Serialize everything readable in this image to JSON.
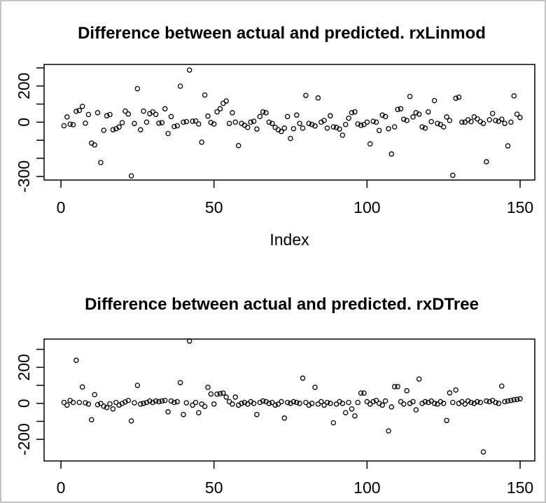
{
  "page": {
    "background": "#ffffff",
    "border_color": "#c3c3c3",
    "axis_color": "#000000",
    "point_color": "#000000"
  },
  "chart_data": [
    {
      "type": "scatter",
      "title": "Difference between actual and predicted. rxLinmod",
      "xlabel": "Index",
      "ylabel": "",
      "marker": "open-circle",
      "grid": false,
      "xlim": [
        -5.5,
        154.8
      ],
      "ylim": [
        -320,
        319
      ],
      "x_ticks": [
        {
          "v": 0,
          "label": "0"
        },
        {
          "v": 50,
          "label": "50"
        },
        {
          "v": 100,
          "label": "100"
        },
        {
          "v": 150,
          "label": "150"
        }
      ],
      "y_ticks": [
        {
          "v": 300,
          "label": ""
        },
        {
          "v": 200,
          "label": "200"
        },
        {
          "v": 100,
          "label": ""
        },
        {
          "v": 0,
          "label": "0"
        },
        {
          "v": -100,
          "label": ""
        },
        {
          "v": -200,
          "label": ""
        },
        {
          "v": -300,
          "label": "-300"
        }
      ],
      "x_index": {
        "from": 1,
        "to": 150
      },
      "values": [
        -20,
        29,
        -11,
        -14,
        60,
        65,
        87,
        -6,
        42,
        -116,
        -126,
        52,
        -223,
        -45,
        35,
        42,
        -42,
        -36,
        -27,
        -3,
        61,
        45,
        -297,
        -7,
        185,
        -42,
        61,
        0,
        47,
        57,
        43,
        -6,
        -3,
        74,
        -63,
        31,
        -24,
        -20,
        199,
        0,
        3,
        288,
        5,
        7,
        -10,
        -111,
        150,
        33,
        -2,
        -10,
        57,
        74,
        104,
        117,
        -7,
        52,
        0,
        -130,
        -7,
        -17,
        -29,
        0,
        5,
        -38,
        31,
        57,
        52,
        0,
        -7,
        -29,
        -42,
        -52,
        -33,
        31,
        -90,
        -36,
        39,
        -7,
        -33,
        148,
        -7,
        -13,
        -21,
        134,
        0,
        9,
        -33,
        35,
        -26,
        -29,
        -38,
        -72,
        -13,
        22,
        52,
        57,
        -10,
        -17,
        -13,
        0,
        -120,
        5,
        0,
        -46,
        39,
        31,
        -36,
        -176,
        -26,
        70,
        74,
        16,
        9,
        142,
        29,
        52,
        44,
        -26,
        -33,
        57,
        3,
        119,
        -7,
        -13,
        -26,
        29,
        9,
        -294,
        132,
        138,
        0,
        0,
        13,
        3,
        29,
        18,
        3,
        -7,
        -219,
        13,
        48,
        9,
        5,
        16,
        -7,
        -131,
        0,
        145,
        44,
        26
      ]
    },
    {
      "type": "scatter",
      "title": "Difference between actual and predicted. rxDTree",
      "xlabel": "",
      "ylabel": "",
      "marker": "open-circle",
      "grid": false,
      "xlim": [
        -5.5,
        154.8
      ],
      "ylim": [
        -320,
        357
      ],
      "x_ticks": [
        {
          "v": 0,
          "label": "0"
        },
        {
          "v": 50,
          "label": "50"
        },
        {
          "v": 100,
          "label": "100"
        },
        {
          "v": 150,
          "label": "150"
        }
      ],
      "y_ticks": [
        {
          "v": 300,
          "label": ""
        },
        {
          "v": 200,
          "label": "200"
        },
        {
          "v": 100,
          "label": ""
        },
        {
          "v": 0,
          "label": "0"
        },
        {
          "v": -100,
          "label": ""
        },
        {
          "v": -200,
          "label": "-200"
        }
      ],
      "x_index": {
        "from": 1,
        "to": 150
      },
      "values": [
        5,
        -10,
        16,
        5,
        239,
        5,
        91,
        3,
        -4,
        -91,
        48,
        -7,
        -1,
        -16,
        -23,
        -3,
        -31,
        5,
        -10,
        -1,
        8,
        16,
        -98,
        3,
        100,
        -4,
        0,
        5,
        13,
        5,
        13,
        9,
        13,
        16,
        -47,
        13,
        5,
        9,
        115,
        -62,
        3,
        346,
        -10,
        5,
        -52,
        -4,
        -17,
        89,
        52,
        -4,
        51,
        54,
        57,
        35,
        9,
        -4,
        35,
        -10,
        0,
        5,
        -4,
        9,
        0,
        -62,
        5,
        13,
        9,
        0,
        5,
        -10,
        -4,
        9,
        -82,
        5,
        0,
        9,
        5,
        0,
        140,
        5,
        -10,
        0,
        89,
        -4,
        9,
        -10,
        5,
        0,
        -108,
        -4,
        9,
        0,
        -52,
        5,
        -31,
        -70,
        5,
        57,
        57,
        9,
        -4,
        9,
        16,
        0,
        -10,
        13,
        -153,
        -20,
        93,
        93,
        9,
        -4,
        70,
        0,
        9,
        -36,
        135,
        0,
        9,
        5,
        13,
        0,
        -4,
        9,
        0,
        -95,
        58,
        5,
        74,
        0,
        9,
        -4,
        13,
        5,
        0,
        9,
        5,
        -270,
        13,
        9,
        16,
        5,
        0,
        96,
        9,
        13,
        16,
        20,
        22,
        25
      ]
    }
  ]
}
